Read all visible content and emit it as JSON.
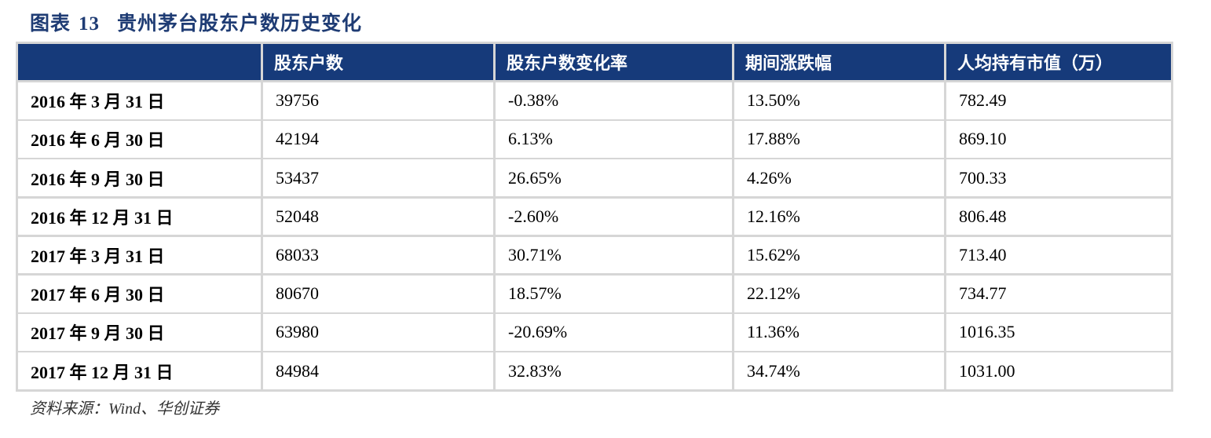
{
  "title": {
    "label": "图表",
    "number": "13",
    "text": "贵州茅台股东户数历史变化"
  },
  "table": {
    "headers": [
      "",
      "股东户数",
      "股东户数变化率",
      "期间涨跌幅",
      "人均持有市值（万）"
    ],
    "rows": [
      [
        "2016 年 3 月 31 日",
        "39756",
        "-0.38%",
        "13.50%",
        "782.49"
      ],
      [
        "2016 年 6 月 30 日",
        "42194",
        "6.13%",
        "17.88%",
        "869.10"
      ],
      [
        "2016 年 9 月 30 日",
        "53437",
        "26.65%",
        "4.26%",
        "700.33"
      ],
      [
        "2016 年 12 月 31 日",
        "52048",
        "-2.60%",
        "12.16%",
        "806.48"
      ],
      [
        "2017 年 3 月 31 日",
        "68033",
        "30.71%",
        "15.62%",
        "713.40"
      ],
      [
        "2017 年 6 月 30 日",
        "80670",
        "18.57%",
        "22.12%",
        "734.77"
      ],
      [
        "2017 年 9 月 30 日",
        "63980",
        "-20.69%",
        "11.36%",
        "1016.35"
      ],
      [
        "2017 年 12 月 31 日",
        "84984",
        "32.83%",
        "34.74%",
        "1031.00"
      ]
    ]
  },
  "source": "资料来源：Wind、华创证券",
  "colors": {
    "header_bg": "#163a7a",
    "title_color": "#1f3c74",
    "grid": "#d6d6d6"
  }
}
